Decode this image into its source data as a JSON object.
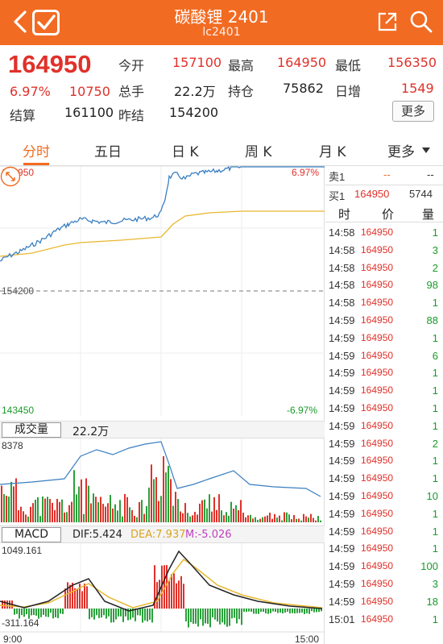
{
  "header": {
    "title": "碳酸锂 2401",
    "code": "lc2401"
  },
  "quote": {
    "last_price": "164950",
    "change_pct": "6.97%",
    "change": "10750",
    "open_label": "今开",
    "open": "157100",
    "high_label": "最高",
    "high": "164950",
    "low_label": "最低",
    "low": "156350",
    "volume_label": "总手",
    "volume": "22.2万",
    "oi_label": "持仓",
    "oi": "75862",
    "oi_chg_label": "日增",
    "oi_chg": "1549",
    "settle_label": "结算",
    "settle": "161100",
    "prev_settle_label": "昨结",
    "prev_settle": "154200",
    "more_label": "更多"
  },
  "tabs": [
    {
      "label": "分时",
      "active": true
    },
    {
      "label": "五日",
      "active": false
    },
    {
      "label": "日 K",
      "active": false
    },
    {
      "label": "周 K",
      "active": false
    },
    {
      "label": "月 K",
      "active": false
    },
    {
      "label": "更多",
      "active": false
    }
  ],
  "price_chart": {
    "top_label": "164950",
    "mid_label": "154200",
    "bottom_label": "143450",
    "top_pct": "6.97%",
    "bottom_pct": "-6.97%",
    "y_max": 164950,
    "y_mid": 154200,
    "y_min": 143450,
    "price_color": "#3a7fc1",
    "avg_color": "#e8b830"
  },
  "volume": {
    "button_label": "成交量",
    "total": "22.2万",
    "max_label": "8378"
  },
  "macd": {
    "button_label": "MACD",
    "dif_label": "DIF:5.424",
    "dea_label": "DEA:7.937",
    "m_label": "M:-5.026",
    "max_label": "1049.161",
    "min_label": "-311.164",
    "dif_color": "#222222",
    "dea_color": "#e8b830",
    "m_color": "#c040c0"
  },
  "time_axis": {
    "start": "9:00",
    "end": "15:00"
  },
  "order_book": {
    "sell_label": "卖1",
    "sell_price": "--",
    "sell_qty": "--",
    "buy_label": "买1",
    "buy_price": "164950",
    "buy_qty": "5744",
    "col_time": "时",
    "col_price": "价",
    "col_qty": "量"
  },
  "trades": [
    {
      "time": "14:58",
      "price": "164950",
      "qty": "1",
      "dir": "up"
    },
    {
      "time": "14:58",
      "price": "164950",
      "qty": "3",
      "dir": "up"
    },
    {
      "time": "14:58",
      "price": "164950",
      "qty": "2",
      "dir": "up"
    },
    {
      "time": "14:58",
      "price": "164950",
      "qty": "98",
      "dir": "up"
    },
    {
      "time": "14:58",
      "price": "164950",
      "qty": "1",
      "dir": "up"
    },
    {
      "time": "14:59",
      "price": "164950",
      "qty": "88",
      "dir": "up"
    },
    {
      "time": "14:59",
      "price": "164950",
      "qty": "1",
      "dir": "up"
    },
    {
      "time": "14:59",
      "price": "164950",
      "qty": "6",
      "dir": "up"
    },
    {
      "time": "14:59",
      "price": "164950",
      "qty": "1",
      "dir": "up"
    },
    {
      "time": "14:59",
      "price": "164950",
      "qty": "1",
      "dir": "up"
    },
    {
      "time": "14:59",
      "price": "164950",
      "qty": "1",
      "dir": "up"
    },
    {
      "time": "14:59",
      "price": "164950",
      "qty": "1",
      "dir": "up"
    },
    {
      "time": "14:59",
      "price": "164950",
      "qty": "2",
      "dir": "up"
    },
    {
      "time": "14:59",
      "price": "164950",
      "qty": "1",
      "dir": "up"
    },
    {
      "time": "14:59",
      "price": "164950",
      "qty": "1",
      "dir": "up"
    },
    {
      "time": "14:59",
      "price": "164950",
      "qty": "10",
      "dir": "up"
    },
    {
      "time": "14:59",
      "price": "164950",
      "qty": "1",
      "dir": "up"
    },
    {
      "time": "14:59",
      "price": "164950",
      "qty": "1",
      "dir": "up"
    },
    {
      "time": "14:59",
      "price": "164950",
      "qty": "1",
      "dir": "up"
    },
    {
      "time": "14:59",
      "price": "164950",
      "qty": "100",
      "dir": "up"
    },
    {
      "time": "14:59",
      "price": "164950",
      "qty": "3",
      "dir": "up"
    },
    {
      "time": "14:59",
      "price": "164950",
      "qty": "18",
      "dir": "up"
    },
    {
      "time": "15:01",
      "price": "164950",
      "qty": "1",
      "dir": "up"
    }
  ]
}
